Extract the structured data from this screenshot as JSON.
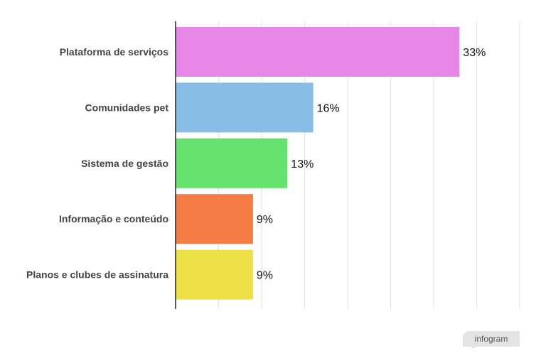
{
  "chart_data": {
    "type": "bar",
    "orientation": "horizontal",
    "categories": [
      "Plataforma de serviços",
      "Comunidades pet",
      "Sistema de gestão",
      "Informação e conteúdo",
      "Planos e clubes de assinatura"
    ],
    "values": [
      33,
      16,
      13,
      9,
      9
    ],
    "value_labels": [
      "33%",
      "16%",
      "13%",
      "9%",
      "9%"
    ],
    "colors": [
      "#e686e6",
      "#88bde6",
      "#66e36f",
      "#f47c45",
      "#ede047"
    ],
    "xlim": [
      0,
      40
    ],
    "grid": true,
    "title": "",
    "xlabel": "",
    "ylabel": ""
  },
  "branding": {
    "logo_text": "infogram"
  }
}
